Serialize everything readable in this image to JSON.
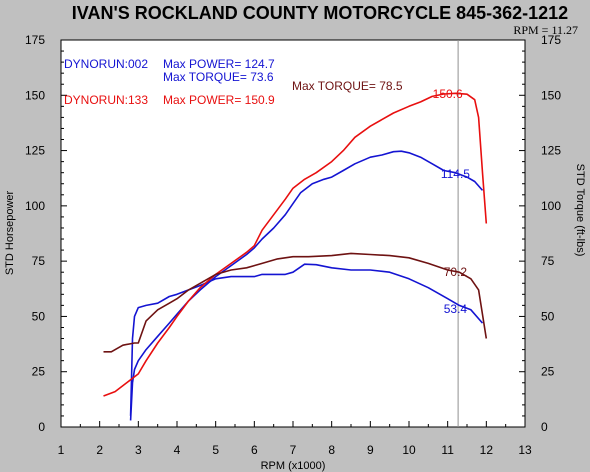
{
  "chart_data": {
    "type": "line",
    "title": "IVAN'S ROCKLAND COUNTY MOTORCYCLE 845-362-1212",
    "rpm_readout": "RPM = 11.27",
    "cursor_rpm": 11.27,
    "xlabel": "RPM (x1000)",
    "ylabel_left": "STD Horsepower",
    "ylabel_right": "STD Torque (ft-lbs)",
    "xlim": [
      1,
      13
    ],
    "ylim": [
      0,
      175
    ],
    "xticks": [
      "1",
      "2",
      "3",
      "4",
      "5",
      "6",
      "7",
      "8",
      "9",
      "10",
      "11",
      "12",
      "13"
    ],
    "yticks": [
      "0",
      "25",
      "50",
      "75",
      "100",
      "125",
      "150",
      "175"
    ],
    "grid": false,
    "runs": [
      {
        "name": "DYNORUN:002",
        "color": "#1414d2",
        "summary": [
          "Max POWER= 124.7",
          "Max TORQUE= 73.6"
        ],
        "series": [
          {
            "measure": "horsepower",
            "x": [
              2.8,
              2.85,
              2.9,
              3.0,
              3.2,
              3.5,
              3.8,
              4.0,
              4.3,
              4.6,
              5.0,
              5.4,
              5.8,
              6.0,
              6.2,
              6.5,
              6.8,
              7.0,
              7.2,
              7.5,
              7.8,
              8.0,
              8.3,
              8.6,
              9.0,
              9.3,
              9.6,
              9.8,
              10.0,
              10.3,
              10.6,
              10.9,
              11.2,
              11.5,
              11.7,
              11.9
            ],
            "y": [
              3,
              20,
              26,
              30,
              35,
              41,
              47,
              51,
              57,
              62,
              68,
              73,
              78,
              81,
              85,
              90,
              96,
              101,
              106,
              110,
              112,
              113,
              116,
              119,
              122,
              123,
              124.5,
              124.7,
              124,
              122,
              119,
              116,
              115,
              113,
              111,
              107
            ]
          },
          {
            "measure": "torque",
            "x": [
              2.8,
              2.85,
              2.9,
              3.0,
              3.2,
              3.5,
              3.8,
              4.0,
              4.3,
              4.6,
              5.0,
              5.4,
              5.8,
              6.0,
              6.2,
              6.5,
              6.8,
              7.0,
              7.3,
              7.6,
              8.0,
              8.5,
              9.0,
              9.5,
              10.0,
              10.5,
              11.0,
              11.3,
              11.6,
              11.9
            ],
            "y": [
              5,
              40,
              50,
              54,
              55,
              56,
              59,
              60,
              62,
              64,
              67,
              68,
              68,
              68,
              69,
              69,
              69,
              70,
              73.6,
              73.4,
              72,
              71,
              71,
              70,
              67,
              63,
              58,
              55,
              53,
              47
            ]
          }
        ]
      },
      {
        "name": "DYNORUN:133",
        "color": "#e80f0f",
        "summary": [
          "Max POWER= 150.9",
          "Max TORQUE= 78.5"
        ],
        "series": [
          {
            "measure": "horsepower",
            "x": [
              2.1,
              2.4,
              2.7,
              3.0,
              3.2,
              3.5,
              3.8,
              4.0,
              4.3,
              4.6,
              5.0,
              5.4,
              5.8,
              6.0,
              6.2,
              6.5,
              6.8,
              7.0,
              7.3,
              7.6,
              8.0,
              8.3,
              8.6,
              9.0,
              9.3,
              9.6,
              10.0,
              10.3,
              10.6,
              10.9,
              11.2,
              11.5,
              11.7,
              11.8,
              11.9,
              12.0
            ],
            "y": [
              14,
              16,
              20,
              24,
              30,
              38,
              45,
              50,
              57,
              63,
              69,
              74,
              79,
              82,
              89,
              96,
              103,
              108,
              112,
              115,
              120,
              125,
              131,
              136,
              139,
              142,
              145,
              147,
              149.5,
              150.6,
              150.9,
              150.5,
              148,
              140,
              115,
              92
            ]
          },
          {
            "measure": "torque",
            "x": [
              2.1,
              2.3,
              2.6,
              2.9,
              3.0,
              3.2,
              3.5,
              3.8,
              4.0,
              4.3,
              4.6,
              5.0,
              5.4,
              5.8,
              6.2,
              6.6,
              7.0,
              7.4,
              8.0,
              8.5,
              9.0,
              9.5,
              10.0,
              10.5,
              11.0,
              11.3,
              11.6,
              11.8,
              12.0
            ],
            "y": [
              34,
              34,
              37,
              38,
              38,
              48,
              53,
              56,
              58,
              62,
              65,
              69,
              71,
              72,
              74,
              76,
              77,
              77,
              77.5,
              78.5,
              78,
              77.5,
              76.5,
              74,
              71,
              70,
              67,
              62,
              40
            ]
          }
        ]
      }
    ],
    "data_labels": [
      {
        "text": "150.6",
        "x": 11.0,
        "y": 150.6,
        "color": "#e80f0f"
      },
      {
        "text": "114.5",
        "x": 11.2,
        "y": 114.5,
        "color": "#1414d2"
      },
      {
        "text": "70.2",
        "x": 11.2,
        "y": 70.2,
        "color": "#6e1212"
      },
      {
        "text": "53.4",
        "x": 11.2,
        "y": 53.4,
        "color": "#1414d2"
      }
    ],
    "legend_entries": [
      {
        "text": "DYNORUN:002",
        "color": "#1414d2"
      },
      {
        "text": "Max POWER= 124.7",
        "color": "#1414d2"
      },
      {
        "text": "Max TORQUE= 73.6",
        "color": "#1414d2"
      },
      {
        "text": "DYNORUN:133",
        "color": "#e80f0f"
      },
      {
        "text": "Max POWER= 150.9",
        "color": "#e80f0f"
      },
      {
        "text": "Max TORQUE= 78.5",
        "color": "#6e1212"
      }
    ],
    "colors": {
      "background": "#c0c0c0",
      "plot_area": "#ffffff",
      "run_002": "#1414d2",
      "run_133_power": "#e80f0f",
      "run_133_torque": "#6e1212",
      "cursor": "#909090"
    }
  }
}
